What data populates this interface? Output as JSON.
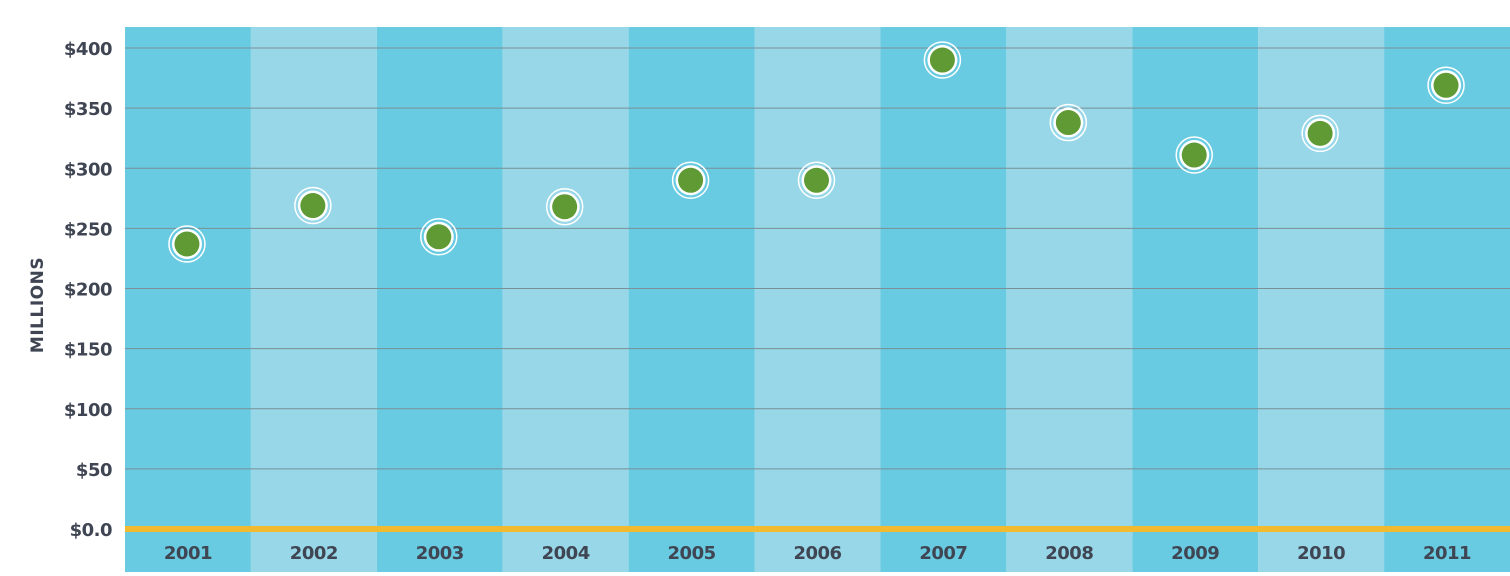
{
  "chart_data": {
    "type": "scatter",
    "ylabel": "MILLIONS",
    "xlabel": "",
    "title": "",
    "categories": [
      "2001",
      "2002",
      "2003",
      "2004",
      "2005",
      "2006",
      "2007",
      "2008",
      "2009",
      "2010",
      "2011"
    ],
    "values": [
      237,
      269,
      243,
      268,
      290,
      290,
      390,
      338,
      311,
      329,
      369
    ],
    "ylim": [
      0,
      400
    ],
    "yticks": [
      0,
      50,
      100,
      150,
      200,
      250,
      300,
      350,
      400
    ],
    "ytick_labels": [
      "$0.0",
      "$50",
      "$100",
      "$150",
      "$200",
      "$250",
      "$300",
      "$350",
      "$400"
    ],
    "grid": true,
    "colors": {
      "column_dark": "#68cbe1",
      "column_light": "#97d7e8",
      "gridline": "#7a8f96",
      "baseline": "#f2bb2f",
      "marker_fill": "#5f9a34",
      "marker_ring": "#ffffff",
      "text": "#3f4552"
    }
  }
}
